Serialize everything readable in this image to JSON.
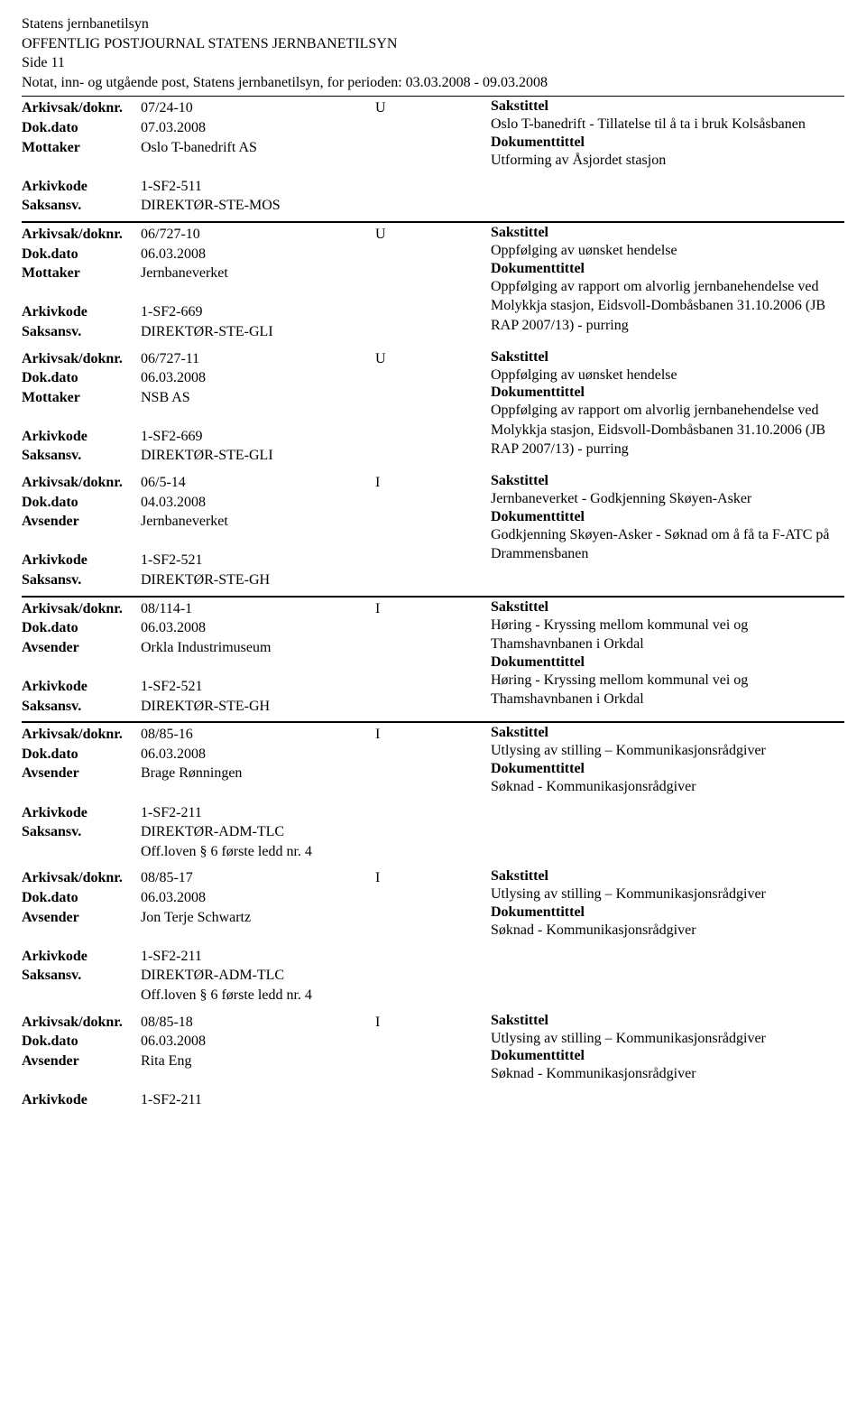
{
  "header": {
    "org": "Statens jernbanetilsyn",
    "title": "OFFENTLIG POSTJOURNAL STATENS JERNBANETILSYN",
    "page": "Side 11",
    "subtitle": "Notat, inn- og utgående post, Statens jernbanetilsyn, for perioden: 03.03.2008 - 09.03.2008"
  },
  "labels": {
    "arkivsak": "Arkivsak/doknr.",
    "dokdato": "Dok.dato",
    "mottaker": "Mottaker",
    "avsender": "Avsender",
    "arkivkode": "Arkivkode",
    "saksansv": "Saksansv.",
    "sakstittel": "Sakstittel",
    "dokumenttittel": "Dokumenttittel"
  },
  "entries": [
    {
      "arkivsak": "07/24-10",
      "type": "U",
      "dokdato": "07.03.2008",
      "party_label": "Mottaker",
      "party": "Oslo T-banedrift AS",
      "arkivkode": "1-SF2-511",
      "saksansv": "DIREKTØR-STE-MOS",
      "offloven": "",
      "sakstittel": "Oslo T-banedrift - Tillatelse til å ta i bruk Kolsåsbanen",
      "doktittel": "Utforming av Åsjordet stasjon"
    },
    {
      "arkivsak": "06/727-10",
      "type": "U",
      "dokdato": "06.03.2008",
      "party_label": "Mottaker",
      "party": "Jernbaneverket",
      "arkivkode": "1-SF2-669",
      "saksansv": "DIREKTØR-STE-GLI",
      "offloven": "",
      "sakstittel": "Oppfølging av uønsket hendelse",
      "doktittel": "Oppfølging av rapport om alvorlig jernbanehendelse ved Molykkja stasjon, Eidsvoll-Dombåsbanen 31.10.2006 (JB RAP 2007/13) - purring"
    },
    {
      "arkivsak": "06/727-11",
      "type": "U",
      "dokdato": "06.03.2008",
      "party_label": "Mottaker",
      "party": "NSB AS",
      "arkivkode": "1-SF2-669",
      "saksansv": "DIREKTØR-STE-GLI",
      "offloven": "",
      "sakstittel": "Oppfølging av uønsket hendelse",
      "doktittel": "Oppfølging av rapport om alvorlig jernbanehendelse ved Molykkja stasjon, Eidsvoll-Dombåsbanen 31.10.2006 (JB RAP 2007/13) - purring"
    },
    {
      "arkivsak": "06/5-14",
      "type": "I",
      "dokdato": "04.03.2008",
      "party_label": "Avsender",
      "party": "Jernbaneverket",
      "arkivkode": "1-SF2-521",
      "saksansv": "DIREKTØR-STE-GH",
      "offloven": "",
      "sakstittel": "Jernbaneverket - Godkjenning Skøyen-Asker",
      "doktittel": "Godkjenning Skøyen-Asker - Søknad om å få ta F-ATC på Drammensbanen"
    },
    {
      "arkivsak": "08/114-1",
      "type": "I",
      "dokdato": "06.03.2008",
      "party_label": "Avsender",
      "party": "Orkla Industrimuseum",
      "arkivkode": "1-SF2-521",
      "saksansv": "DIREKTØR-STE-GH",
      "offloven": "",
      "sakstittel": "Høring - Kryssing mellom kommunal vei og Thamshavnbanen i Orkdal",
      "doktittel": "Høring - Kryssing mellom kommunal vei og Thamshavnbanen i Orkdal"
    },
    {
      "arkivsak": "08/85-16",
      "type": "I",
      "dokdato": "06.03.2008",
      "party_label": "Avsender",
      "party": "Brage Rønningen",
      "arkivkode": "1-SF2-211",
      "saksansv": "DIREKTØR-ADM-TLC",
      "offloven": "Off.loven § 6 første ledd nr. 4",
      "sakstittel": "Utlysing av stilling – Kommunikasjonsrådgiver",
      "doktittel": "Søknad - Kommunikasjonsrådgiver"
    },
    {
      "arkivsak": "08/85-17",
      "type": "I",
      "dokdato": "06.03.2008",
      "party_label": "Avsender",
      "party": "Jon Terje Schwartz",
      "arkivkode": "1-SF2-211",
      "saksansv": "DIREKTØR-ADM-TLC",
      "offloven": "Off.loven § 6 første ledd nr. 4",
      "sakstittel": "Utlysing av stilling – Kommunikasjonsrådgiver",
      "doktittel": "Søknad - Kommunikasjonsrådgiver"
    },
    {
      "arkivsak": "08/85-18",
      "type": "I",
      "dokdato": "06.03.2008",
      "party_label": "Avsender",
      "party": "Rita Eng",
      "arkivkode": "1-SF2-211",
      "saksansv": "",
      "offloven": "",
      "sakstittel": "Utlysing av stilling – Kommunikasjonsrådgiver",
      "doktittel": "Søknad - Kommunikasjonsrådgiver"
    }
  ],
  "groups": [
    [
      0
    ],
    [
      1,
      2,
      3
    ],
    [
      4
    ],
    [
      5,
      6,
      7
    ]
  ]
}
